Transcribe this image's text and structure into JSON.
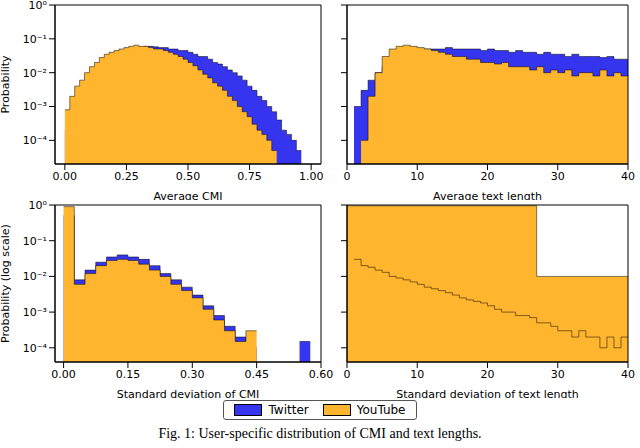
{
  "chart_data": [
    {
      "type": "histogram",
      "log": "y",
      "x_label": "Average CMI",
      "y_label": "Probability",
      "legend": "bottom",
      "tick_labels": true,
      "xlim": [
        -0.04,
        1.04
      ],
      "xticks": [
        {
          "value": 0,
          "label": "0.00"
        },
        {
          "value": 0.25,
          "label": "0.25"
        },
        {
          "value": 0.5,
          "label": "0.50"
        },
        {
          "value": 0.75,
          "label": "0.75"
        },
        {
          "value": 1,
          "label": "1.00"
        }
      ],
      "ylim": [
        2e-05,
        1
      ],
      "yticks": [
        {
          "value": 0.0001,
          "label": "10⁻⁴"
        },
        {
          "value": 0.001,
          "label": "10⁻³"
        },
        {
          "value": 0.01,
          "label": "10⁻²"
        },
        {
          "value": 0.1,
          "label": "10⁻¹"
        },
        {
          "value": 1,
          "label": "10⁰"
        }
      ],
      "series": [
        {
          "name": "Twitter",
          "color": "#3535f0",
          "bins": [
            0,
            0.02,
            0.04,
            0.06,
            0.08,
            0.1,
            0.12,
            0.14,
            0.16,
            0.18,
            0.2,
            0.22,
            0.24,
            0.26,
            0.28,
            0.3,
            0.32,
            0.34,
            0.36,
            0.38,
            0.4,
            0.42,
            0.44,
            0.46,
            0.48,
            0.5,
            0.52,
            0.54,
            0.56,
            0.58,
            0.6,
            0.62,
            0.64,
            0.66,
            0.68,
            0.7,
            0.72,
            0.74,
            0.76,
            0.78,
            0.8,
            0.82,
            0.84,
            0.86,
            0.88,
            0.9,
            0.92,
            0.94,
            0.96
          ],
          "values": [
            0.0002,
            0.0008,
            0.0015,
            0.003,
            0.005,
            0.008,
            0.012,
            0.015,
            0.02,
            0.025,
            0.03,
            0.035,
            0.04,
            0.045,
            0.05,
            0.055,
            0.06,
            0.06,
            0.058,
            0.055,
            0.055,
            0.05,
            0.05,
            0.045,
            0.045,
            0.04,
            0.035,
            0.03,
            0.03,
            0.025,
            0.02,
            0.018,
            0.015,
            0.012,
            0.01,
            0.008,
            0.006,
            0.004,
            0.003,
            0.002,
            0.0015,
            0.001,
            0.0007,
            0.0004,
            0.0002,
            0.00015,
            0.0001,
            5e-05
          ]
        },
        {
          "name": "YouTube",
          "color": "#ffb52e",
          "bins": [
            0,
            0.02,
            0.04,
            0.06,
            0.08,
            0.1,
            0.12,
            0.14,
            0.16,
            0.18,
            0.2,
            0.22,
            0.24,
            0.26,
            0.28,
            0.3,
            0.32,
            0.34,
            0.36,
            0.38,
            0.4,
            0.42,
            0.44,
            0.46,
            0.48,
            0.5,
            0.52,
            0.54,
            0.56,
            0.58,
            0.6,
            0.62,
            0.64,
            0.66,
            0.68,
            0.7,
            0.72,
            0.74,
            0.76,
            0.78,
            0.8,
            0.82,
            0.84,
            0.86
          ],
          "values": [
            0.0008,
            0.002,
            0.004,
            0.006,
            0.01,
            0.015,
            0.02,
            0.028,
            0.035,
            0.04,
            0.045,
            0.05,
            0.055,
            0.06,
            0.065,
            0.06,
            0.06,
            0.055,
            0.05,
            0.05,
            0.045,
            0.04,
            0.035,
            0.03,
            0.025,
            0.02,
            0.016,
            0.012,
            0.009,
            0.007,
            0.005,
            0.004,
            0.003,
            0.002,
            0.0015,
            0.001,
            0.0007,
            0.0005,
            0.0003,
            0.0002,
            0.00015,
            0.0001,
            5e-05
          ]
        }
      ]
    },
    {
      "type": "histogram",
      "log": "y",
      "x_label": "Average text length",
      "tick_labels": "x",
      "xlim": [
        0,
        40
      ],
      "xticks": [
        0,
        10,
        20,
        30,
        40
      ],
      "ylim": [
        2e-05,
        1
      ],
      "yticks": [
        0.0001,
        0.001,
        0.01,
        0.1,
        1
      ],
      "series": [
        {
          "name": "Twitter",
          "color": "#3535f0",
          "bins": [
            1,
            2,
            3,
            4,
            5,
            6,
            7,
            8,
            9,
            10,
            11,
            12,
            13,
            14,
            15,
            16,
            17,
            18,
            19,
            20,
            21,
            22,
            23,
            24,
            25,
            26,
            27,
            28,
            29,
            30,
            31,
            32,
            33,
            34,
            35,
            36,
            37,
            38,
            39,
            40
          ],
          "values": [
            0.001,
            0.003,
            0.006,
            0.01,
            0.015,
            0.02,
            0.03,
            0.035,
            0.04,
            0.045,
            0.05,
            0.05,
            0.05,
            0.055,
            0.05,
            0.05,
            0.05,
            0.05,
            0.045,
            0.05,
            0.045,
            0.045,
            0.04,
            0.045,
            0.04,
            0.04,
            0.035,
            0.04,
            0.035,
            0.035,
            0.03,
            0.035,
            0.03,
            0.03,
            0.03,
            0.028,
            0.03,
            0.025,
            0.025
          ]
        },
        {
          "name": "YouTube",
          "color": "#ffb52e",
          "bins": [
            2,
            3,
            4,
            5,
            6,
            7,
            8,
            9,
            10,
            11,
            12,
            13,
            14,
            15,
            16,
            17,
            18,
            19,
            20,
            21,
            22,
            23,
            24,
            25,
            26,
            27,
            28,
            29,
            30,
            31,
            32,
            33,
            34,
            35,
            36,
            37,
            38,
            39,
            40
          ],
          "values": [
            0.0001,
            0.002,
            0.01,
            0.03,
            0.05,
            0.06,
            0.065,
            0.06,
            0.055,
            0.05,
            0.045,
            0.04,
            0.035,
            0.03,
            0.03,
            0.025,
            0.025,
            0.02,
            0.02,
            0.018,
            0.02,
            0.015,
            0.015,
            0.015,
            0.012,
            0.015,
            0.01,
            0.012,
            0.01,
            0.012,
            0.008,
            0.01,
            0.01,
            0.008,
            0.012,
            0.008,
            0.01,
            0.008
          ]
        }
      ]
    },
    {
      "type": "histogram",
      "log": "y",
      "x_label": "Standard deviation of CMI",
      "y_label": "Probability (log scale)",
      "tick_labels": true,
      "xlim": [
        -0.02,
        0.6
      ],
      "xticks": [
        {
          "value": 0,
          "label": "0.00"
        },
        {
          "value": 0.15,
          "label": "0.15"
        },
        {
          "value": 0.3,
          "label": "0.30"
        },
        {
          "value": 0.45,
          "label": "0.45"
        },
        {
          "value": 0.6,
          "label": "0.60"
        }
      ],
      "ylim": [
        4e-05,
        1
      ],
      "yticks": [
        {
          "value": 0.0001,
          "label": "10⁻⁴"
        },
        {
          "value": 0.001,
          "label": "10⁻³"
        },
        {
          "value": 0.01,
          "label": "10⁻²"
        },
        {
          "value": 0.1,
          "label": "10⁻¹"
        },
        {
          "value": 1,
          "label": "10⁰"
        }
      ],
      "series": [
        {
          "name": "Twitter",
          "color": "#3535f0",
          "bins": [
            0,
            0.025,
            0.05,
            0.075,
            0.1,
            0.125,
            0.15,
            0.175,
            0.2,
            0.225,
            0.25,
            0.275,
            0.3,
            0.325,
            0.35,
            0.375,
            0.4,
            0.425,
            0.45,
            0.475,
            0.5,
            0.525,
            0.55,
            0.575
          ],
          "values": [
            0.5,
            0.008,
            0.015,
            0.025,
            0.035,
            0.04,
            0.035,
            0.03,
            0.02,
            0.012,
            0.008,
            0.005,
            0.003,
            0.0015,
            0.0008,
            0.0004,
            0.0002,
            0.0001,
            null,
            null,
            null,
            null,
            0.00015
          ]
        },
        {
          "name": "YouTube",
          "color": "#ffb52e",
          "bins": [
            0,
            0.025,
            0.05,
            0.075,
            0.1,
            0.125,
            0.15,
            0.175,
            0.2,
            0.225,
            0.25,
            0.275,
            0.3,
            0.325,
            0.35,
            0.375,
            0.4,
            0.425,
            0.45
          ],
          "values": [
            0.9,
            0.006,
            0.012,
            0.02,
            0.028,
            0.03,
            0.028,
            0.022,
            0.015,
            0.01,
            0.006,
            0.004,
            0.0025,
            0.0012,
            0.0006,
            0.0003,
            0.00015,
            0.0003
          ]
        }
      ]
    },
    {
      "type": "histogram",
      "log": "y",
      "x_label": "Standard deviation of text length",
      "tick_labels": "x",
      "xlim": [
        0,
        40
      ],
      "xticks": [
        0,
        10,
        20,
        30,
        40
      ],
      "ylim": [
        4e-05,
        1
      ],
      "yticks": [
        0.0001,
        0.001,
        0.01,
        0.1,
        1
      ],
      "series": [
        {
          "name": "YouTube",
          "color": "#ffb52e",
          "bins": [
            0,
            27,
            40
          ],
          "values": [
            0.95,
            0.01
          ]
        },
        {
          "name": "YouTube",
          "color": "#ffb52e",
          "bins": [
            1,
            2,
            3,
            4,
            5,
            6,
            7,
            8,
            9,
            10,
            11,
            12,
            13,
            14,
            15,
            16,
            17,
            18,
            19,
            20,
            21,
            22,
            23,
            24,
            25,
            26,
            27,
            28,
            29,
            30,
            31,
            32,
            33,
            34,
            35,
            36,
            37,
            38,
            39,
            40
          ],
          "values": [
            0.03,
            0.02,
            0.018,
            0.015,
            0.013,
            0.01,
            0.009,
            0.008,
            0.007,
            0.006,
            0.005,
            0.0045,
            0.004,
            0.0035,
            0.003,
            0.0025,
            0.0022,
            0.002,
            0.0018,
            0.0015,
            0.0012,
            0.001,
            0.001,
            0.0008,
            0.0008,
            0.0007,
            0.0005,
            0.0005,
            0.0004,
            0.0003,
            0.0003,
            0.0002,
            0.0003,
            0.0002,
            0.0002,
            0.0001,
            0.0002,
            0.0001,
            0.0002
          ]
        }
      ]
    }
  ],
  "caption": "Fig. 1: User-specific distribution of CMI and text lengths."
}
